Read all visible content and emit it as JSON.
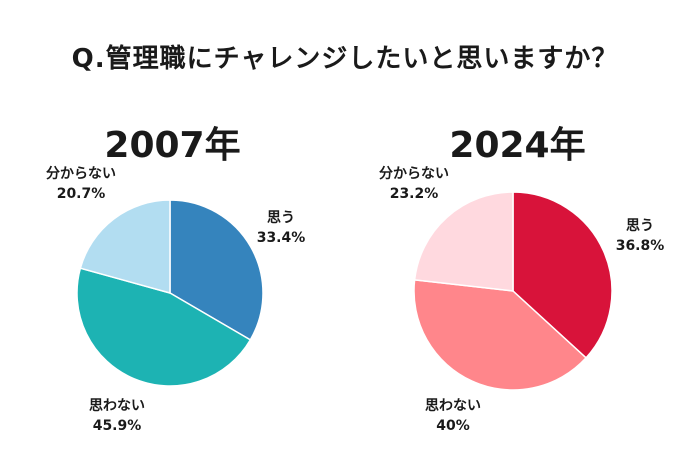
{
  "question": "Q.管理職にチャレンジしたいと思いますか？",
  "chart_data": [
    {
      "type": "pie",
      "title": "2007年",
      "start_angle_deg": 0,
      "direction": "clockwise",
      "slices": [
        {
          "label": "思う",
          "value": 33.4,
          "display": "33.4%",
          "color": "#3584bd"
        },
        {
          "label": "思わない",
          "value": 45.9,
          "display": "45.9%",
          "color": "#1db3b3"
        },
        {
          "label": "分からない",
          "value": 20.7,
          "display": "20.7%",
          "color": "#b2ddf1"
        }
      ]
    },
    {
      "type": "pie",
      "title": "2024年",
      "start_angle_deg": 0,
      "direction": "clockwise",
      "slices": [
        {
          "label": "思う",
          "value": 36.8,
          "display": "36.8%",
          "color": "#d8133a"
        },
        {
          "label": "思わない",
          "value": 40,
          "display": "40%",
          "color": "#ff868b"
        },
        {
          "label": "分からない",
          "value": 23.2,
          "display": "23.2%",
          "color": "#ffd9df"
        }
      ]
    }
  ]
}
